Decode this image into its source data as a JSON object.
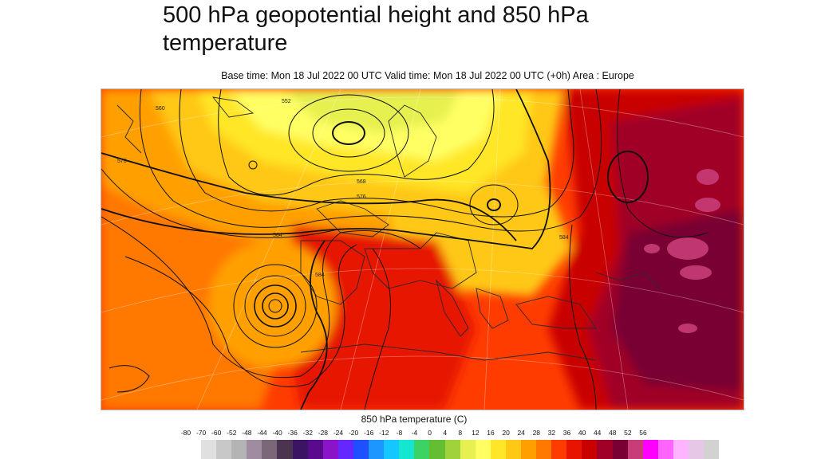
{
  "title": "500 hPa geopotential height and 850 hPa temperature",
  "subtitle": "Base time: Mon 18 Jul 2022 00 UTC Valid time: Mon 18 Jul 2022 00 UTC (+0h) Area : Europe",
  "map": {
    "contour_labels": [
      "560",
      "552",
      "576",
      "568",
      "584",
      "584",
      "576",
      "584"
    ]
  },
  "legend": {
    "title": "850 hPa temperature (C)",
    "ticks": [
      "-80",
      "-70",
      "-60",
      "-52",
      "-48",
      "-44",
      "-40",
      "-36",
      "-32",
      "-28",
      "-24",
      "-20",
      "-16",
      "-12",
      "-8",
      "-4",
      "0",
      "4",
      "8",
      "12",
      "16",
      "20",
      "24",
      "28",
      "32",
      "36",
      "40",
      "44",
      "48",
      "52",
      "56"
    ],
    "colors": [
      "#e0e0e0",
      "#c8c8c8",
      "#b4b4b4",
      "#a08ca0",
      "#7a6878",
      "#4a3450",
      "#3c1464",
      "#5a0a8c",
      "#8c14c8",
      "#6428ff",
      "#1e50ff",
      "#1e96ff",
      "#14c8ff",
      "#14e6d2",
      "#3cd264",
      "#64be32",
      "#a0d23c",
      "#e6f050",
      "#ffff64",
      "#ffe628",
      "#ffc814",
      "#ffa000",
      "#ff7800",
      "#ff3c00",
      "#e61400",
      "#c80000",
      "#a00028",
      "#780032",
      "#c83c78",
      "#ff00ff",
      "#ff64ff",
      "#ffb4ff",
      "#e6c8e6",
      "#d2d2d2"
    ]
  }
}
